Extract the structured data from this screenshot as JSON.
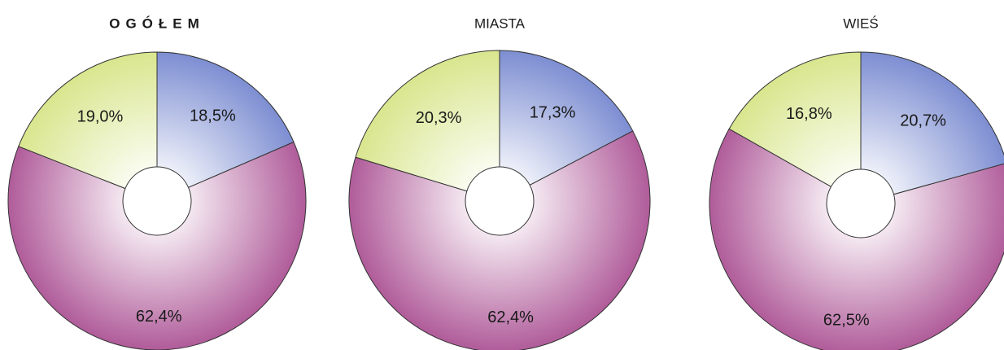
{
  "chart_data": [
    {
      "type": "pie",
      "title": "OGÓŁEM",
      "values": [
        18.5,
        62.4,
        19.0
      ],
      "value_labels": [
        "18,5%",
        "62,4%",
        "19,0%"
      ],
      "colors": [
        "#7d8ed2",
        "#b05c9a",
        "#d9e68e"
      ]
    },
    {
      "type": "pie",
      "title": "MIASTA",
      "values": [
        17.3,
        62.4,
        20.3
      ],
      "value_labels": [
        "17,3%",
        "62,4%",
        "20,3%"
      ],
      "colors": [
        "#7d8ed2",
        "#b05c9a",
        "#d9e68e"
      ]
    },
    {
      "type": "pie",
      "title": "WIEŚ",
      "values": [
        20.7,
        62.5,
        16.8
      ],
      "value_labels": [
        "20,7%",
        "62,5%",
        "16,8%"
      ],
      "colors": [
        "#7d8ed2",
        "#b05c9a",
        "#d9e68e"
      ]
    }
  ]
}
